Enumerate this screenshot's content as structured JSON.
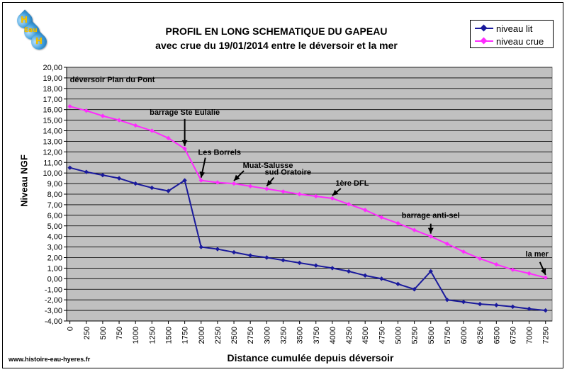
{
  "logo": {
    "letters": [
      "H",
      "Eau",
      "H"
    ]
  },
  "legend": {
    "items": [
      {
        "label": "niveau lit",
        "color": "#1a1a9c"
      },
      {
        "label": "niveau crue",
        "color": "#ff2bff"
      }
    ]
  },
  "footer": {
    "source": "www.histoire-eau-hyeres.fr"
  },
  "chart_data": {
    "type": "line",
    "title": "PROFIL EN LONG SCHEMATIQUE DU GAPEAU",
    "subtitle": "avec crue du 19/01/2014 entre le déversoir et la mer",
    "xlabel": "Distance cumulée depuis déversoir",
    "ylabel": "Niveau NGF",
    "xlim": [
      -50,
      7350
    ],
    "ylim": [
      -4,
      20
    ],
    "y_ticks": [
      "-4,00",
      "-3,00",
      "-2,00",
      "-1,00",
      "0,00",
      "1,00",
      "2,00",
      "3,00",
      "4,00",
      "5,00",
      "6,00",
      "7,00",
      "8,00",
      "9,00",
      "10,00",
      "11,00",
      "12,00",
      "13,00",
      "14,00",
      "15,00",
      "16,00",
      "17,00",
      "18,00",
      "19,00",
      "20,00"
    ],
    "x_ticks": [
      "0",
      "250",
      "500",
      "750",
      "1000",
      "1250",
      "1500",
      "1750",
      "2000",
      "2250",
      "2500",
      "2750",
      "3000",
      "3250",
      "3500",
      "3750",
      "4000",
      "4250",
      "4500",
      "4750",
      "5000",
      "5250",
      "5500",
      "5750",
      "6000",
      "6250",
      "6500",
      "6750",
      "7000",
      "7250"
    ],
    "grid": "horizontal",
    "plot_background": "#c0c0c0",
    "legend_position": "top-right",
    "series": [
      {
        "name": "niveau lit",
        "color": "#1a1a9c",
        "x": [
          0,
          250,
          500,
          750,
          1000,
          1250,
          1500,
          1750,
          2000,
          2250,
          2500,
          2750,
          3000,
          3250,
          3500,
          3750,
          4000,
          4250,
          4500,
          4750,
          5000,
          5250,
          5500,
          5750,
          6000,
          6250,
          6500,
          6750,
          7000,
          7250
        ],
        "y": [
          10.5,
          10.1,
          9.8,
          9.5,
          9.0,
          8.6,
          8.3,
          9.3,
          3.0,
          2.8,
          2.5,
          2.2,
          2.0,
          1.75,
          1.5,
          1.25,
          1.0,
          0.7,
          0.3,
          0.0,
          -0.5,
          -1.0,
          0.7,
          -2.0,
          -2.2,
          -2.4,
          -2.5,
          -2.65,
          -2.85,
          -3.0
        ]
      },
      {
        "name": "niveau crue",
        "color": "#ff2bff",
        "x": [
          0,
          250,
          500,
          750,
          1000,
          1250,
          1500,
          1750,
          2000,
          2250,
          2500,
          2750,
          3000,
          3250,
          3500,
          3750,
          4000,
          4250,
          4500,
          4750,
          5000,
          5250,
          5500,
          5750,
          6000,
          6250,
          6500,
          6750,
          7000,
          7250
        ],
        "y": [
          16.3,
          15.9,
          15.4,
          15.0,
          14.5,
          14.0,
          13.3,
          12.3,
          9.3,
          9.1,
          9.0,
          8.75,
          8.5,
          8.25,
          8.0,
          7.8,
          7.6,
          7.05,
          6.5,
          5.8,
          5.25,
          4.6,
          4.0,
          3.3,
          2.55,
          1.9,
          1.35,
          0.85,
          0.5,
          0.1
        ]
      }
    ],
    "annotations": [
      {
        "text": "déversoir Plan du Pont",
        "x": 0,
        "y": 16.3
      },
      {
        "text": "barrage Ste Eulalie",
        "x": 1750,
        "y": 12.3
      },
      {
        "text": "Les Borrels",
        "x": 2000,
        "y": 9.3
      },
      {
        "text": "Muat-Salusse",
        "x": 2500,
        "y": 9.0
      },
      {
        "text": "sud Oratoire",
        "x": 3000,
        "y": 8.5
      },
      {
        "text": "1ère DFL",
        "x": 4000,
        "y": 7.6
      },
      {
        "text": "barrage anti-sel",
        "x": 5500,
        "y": 4.0
      },
      {
        "text": "la mer",
        "x": 7250,
        "y": 0.1
      }
    ]
  }
}
